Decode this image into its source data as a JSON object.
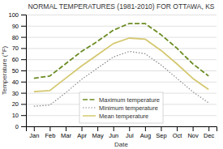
{
  "chart_data": {
    "type": "line",
    "title": "NORMAL TEMPERATURES (1981-2010) FOR OTTAWA, KS",
    "xlabel": "Date",
    "ylabel": "Temperature (°F)",
    "categories": [
      "Jan",
      "Feb",
      "Mar",
      "Apr",
      "May",
      "Jun",
      "Jul",
      "Aug",
      "Sep",
      "Oct",
      "Nov",
      "Dec"
    ],
    "series": [
      {
        "name": "Maximum temperature",
        "color": "#6b8c23",
        "line_style": "dashed",
        "values": [
          43,
          45,
          56,
          67,
          76,
          86,
          92,
          92,
          82,
          70,
          56,
          45
        ]
      },
      {
        "name": "Minimum temperature",
        "color": "#888888",
        "line_style": "dotted",
        "values": [
          18,
          19,
          30,
          42,
          52,
          62,
          67,
          65,
          55,
          43,
          31,
          21
        ]
      },
      {
        "name": "Mean temperature",
        "color": "#d4c870",
        "line_style": "solid",
        "values": [
          31,
          32,
          43,
          54,
          64,
          74,
          79,
          78,
          68,
          56,
          43,
          33
        ]
      }
    ],
    "ylim": [
      0,
      100
    ],
    "yticks": [
      0,
      10,
      20,
      30,
      40,
      50,
      60,
      70,
      80,
      90,
      100
    ],
    "grid": true,
    "legend": "lower center"
  }
}
